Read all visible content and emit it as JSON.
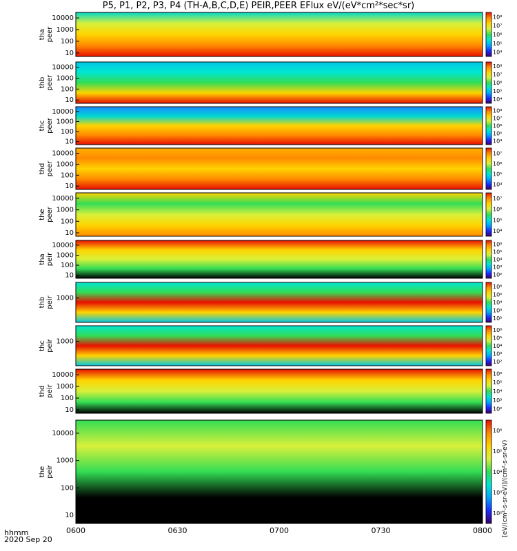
{
  "title": "P5, P1, P2, P3, P4 (TH-A,B,C,D,E) PEIR,PEER EFlux eV/(eV*cm²*sec*sr)",
  "xaxis": {
    "unit_label": "hhmm",
    "date_label": "2020 Sep 20"
  },
  "units_label": "[eV/(cm²-s-sr-eV)]/(cm²-s-sr-eV)",
  "colors": {
    "black": "#000000",
    "white": "#ffffff"
  },
  "chart_data": {
    "type": "heatmap",
    "x_ticks": [
      "0600",
      "0630",
      "0700",
      "0730",
      "0800"
    ],
    "xlim": [
      "0600",
      "0800"
    ],
    "yscale": "log",
    "colormap": [
      "#3a0068",
      "#1b2bff",
      "#00a6ff",
      "#00e6d2",
      "#33dd55",
      "#d8f03a",
      "#ffd400",
      "#ff8a00",
      "#e81000"
    ],
    "panels": [
      {
        "label_top": "tha",
        "label_bottom": "peer",
        "y_ticks": [
          "10",
          "100",
          "1000",
          "10000"
        ],
        "ylim": [
          5,
          30000
        ],
        "cb_ticks": [
          "10⁴",
          "10⁵",
          "10⁶",
          "10⁷",
          "10⁸"
        ]
      },
      {
        "label_top": "thb",
        "label_bottom": "peer",
        "y_ticks": [
          "10",
          "100",
          "1000",
          "10000"
        ],
        "ylim": [
          5,
          30000
        ],
        "cb_ticks": [
          "10⁴",
          "10⁵",
          "10⁶",
          "10⁷",
          "10⁸"
        ]
      },
      {
        "label_top": "thc",
        "label_bottom": "peer",
        "y_ticks": [
          "10",
          "100",
          "1000",
          "10000"
        ],
        "ylim": [
          5,
          30000
        ],
        "cb_ticks": [
          "10⁴",
          "10⁵",
          "10⁶",
          "10⁷",
          "10⁸"
        ]
      },
      {
        "label_top": "thd",
        "label_bottom": "peer",
        "y_ticks": [
          "10",
          "100",
          "1000",
          "10000"
        ],
        "ylim": [
          5,
          30000
        ],
        "cb_ticks": [
          "10⁴",
          "10⁵",
          "10⁶",
          "10⁷"
        ]
      },
      {
        "label_top": "the",
        "label_bottom": "peer",
        "y_ticks": [
          "10",
          "100",
          "1000",
          "10000"
        ],
        "ylim": [
          5,
          30000
        ],
        "cb_ticks": [
          "10⁴",
          "10⁵",
          "10⁶",
          "10⁷"
        ]
      },
      {
        "label_top": "tha",
        "label_bottom": "peir",
        "y_ticks": [
          "10",
          "100",
          "1000",
          "10000"
        ],
        "ylim": [
          5,
          30000
        ],
        "cb_ticks": [
          "10²",
          "10³",
          "10⁴",
          "10⁵",
          "10⁶"
        ]
      },
      {
        "label_top": "thb",
        "label_bottom": "peir",
        "y_ticks": [
          "1000"
        ],
        "ylim": [
          5,
          30000
        ],
        "cb_ticks": [
          "10²",
          "10³",
          "10⁴",
          "10⁵",
          "10⁶"
        ]
      },
      {
        "label_top": "thc",
        "label_bottom": "peir",
        "y_ticks": [
          "1000"
        ],
        "ylim": [
          5,
          30000
        ],
        "cb_ticks": [
          "10²",
          "10³",
          "10⁴",
          "10⁵",
          "10⁶"
        ]
      },
      {
        "label_top": "thd",
        "label_bottom": "peir",
        "y_ticks": [
          "10",
          "100",
          "1000",
          "10000"
        ],
        "ylim": [
          5,
          30000
        ],
        "cb_ticks": [
          "10²",
          "10³",
          "10⁴",
          "10⁵",
          "10⁶"
        ]
      },
      {
        "label_top": "the",
        "label_bottom": "peir",
        "y_ticks": [
          "10",
          "100",
          "1000",
          "10000"
        ],
        "ylim": [
          5,
          30000
        ],
        "cb_ticks": [
          "10²",
          "10³",
          "10⁴",
          "10⁵",
          "10⁶"
        ]
      }
    ]
  }
}
